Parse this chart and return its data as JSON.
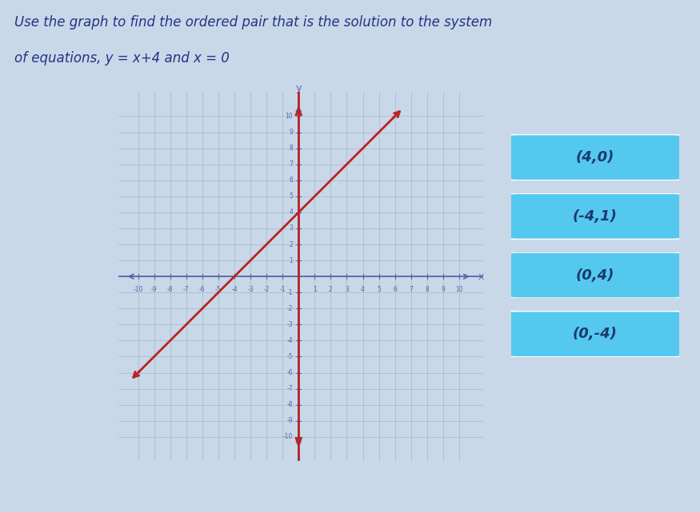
{
  "title_line1": "Use the graph to find the ordered pair that is the solution to the system",
  "title_line2": "of equations, y = x+4 and x = 0",
  "bg_color": "#c8d8e8",
  "graph_bg": "#ccdaeb",
  "grid_color": "#aabcce",
  "axis_color": "#5566aa",
  "line_color": "#bb2222",
  "line_slope": 1,
  "line_intercept": 4,
  "xmin": -10,
  "xmax": 10,
  "ymin": -10,
  "ymax": 10,
  "answer_options": [
    "(4,0)",
    "(-4,1)",
    "(0,4)",
    "(0,-4)"
  ],
  "button_color": "#55c8f0",
  "button_text_color": "#1a3a6a",
  "title_color": "#223388"
}
